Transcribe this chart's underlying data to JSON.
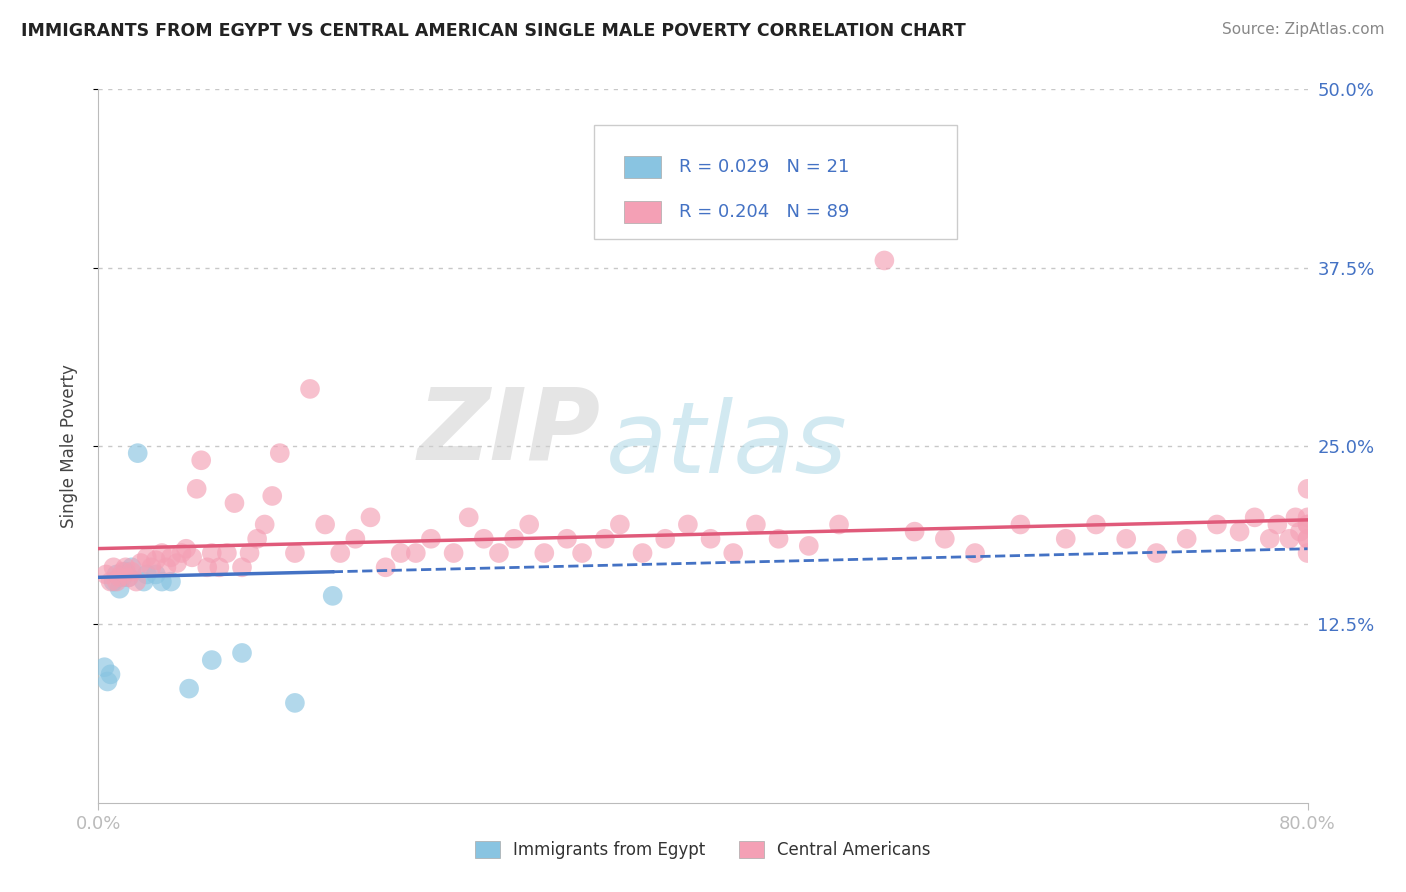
{
  "title": "IMMIGRANTS FROM EGYPT VS CENTRAL AMERICAN SINGLE MALE POVERTY CORRELATION CHART",
  "source": "Source: ZipAtlas.com",
  "ylabel_label": "Single Male Poverty",
  "legend_label1": "Immigrants from Egypt",
  "legend_label2": "Central Americans",
  "legend_R1": "R = 0.029",
  "legend_N1": "N = 21",
  "legend_R2": "R = 0.204",
  "legend_N2": "N = 89",
  "color_blue": "#89c4e1",
  "color_pink": "#f4a0b5",
  "color_blue_line": "#4472c4",
  "color_pink_line": "#e05a7a",
  "xlim": [
    0.0,
    0.8
  ],
  "ylim": [
    0.0,
    0.5
  ],
  "watermark_zip": "ZIP",
  "watermark_atlas": "atlas",
  "background_color": "#ffffff",
  "grid_color": "#c8c8c8",
  "blue_x": [
    0.004,
    0.006,
    0.008,
    0.01,
    0.012,
    0.014,
    0.016,
    0.018,
    0.02,
    0.022,
    0.026,
    0.03,
    0.032,
    0.038,
    0.042,
    0.048,
    0.06,
    0.075,
    0.095,
    0.13,
    0.155
  ],
  "blue_y": [
    0.095,
    0.085,
    0.09,
    0.155,
    0.16,
    0.15,
    0.158,
    0.162,
    0.158,
    0.165,
    0.245,
    0.155,
    0.16,
    0.16,
    0.155,
    0.155,
    0.08,
    0.1,
    0.105,
    0.07,
    0.145
  ],
  "pink_x": [
    0.005,
    0.008,
    0.01,
    0.012,
    0.014,
    0.016,
    0.018,
    0.02,
    0.022,
    0.025,
    0.028,
    0.032,
    0.035,
    0.038,
    0.042,
    0.045,
    0.048,
    0.052,
    0.055,
    0.058,
    0.062,
    0.065,
    0.068,
    0.072,
    0.075,
    0.08,
    0.085,
    0.09,
    0.095,
    0.1,
    0.105,
    0.11,
    0.115,
    0.12,
    0.13,
    0.14,
    0.15,
    0.16,
    0.17,
    0.18,
    0.19,
    0.2,
    0.21,
    0.22,
    0.235,
    0.245,
    0.255,
    0.265,
    0.275,
    0.285,
    0.295,
    0.31,
    0.32,
    0.335,
    0.345,
    0.36,
    0.375,
    0.39,
    0.405,
    0.42,
    0.435,
    0.45,
    0.47,
    0.49,
    0.52,
    0.54,
    0.56,
    0.58,
    0.61,
    0.64,
    0.66,
    0.68,
    0.7,
    0.72,
    0.74,
    0.755,
    0.765,
    0.775,
    0.78,
    0.788,
    0.792,
    0.795,
    0.8,
    0.8,
    0.8,
    0.8,
    0.8,
    0.8,
    0.8
  ],
  "pink_y": [
    0.16,
    0.155,
    0.165,
    0.155,
    0.158,
    0.162,
    0.165,
    0.158,
    0.162,
    0.155,
    0.168,
    0.172,
    0.165,
    0.17,
    0.175,
    0.165,
    0.172,
    0.168,
    0.175,
    0.178,
    0.172,
    0.22,
    0.24,
    0.165,
    0.175,
    0.165,
    0.175,
    0.21,
    0.165,
    0.175,
    0.185,
    0.195,
    0.215,
    0.245,
    0.175,
    0.29,
    0.195,
    0.175,
    0.185,
    0.2,
    0.165,
    0.175,
    0.175,
    0.185,
    0.175,
    0.2,
    0.185,
    0.175,
    0.185,
    0.195,
    0.175,
    0.185,
    0.175,
    0.185,
    0.195,
    0.175,
    0.185,
    0.195,
    0.185,
    0.175,
    0.195,
    0.185,
    0.18,
    0.195,
    0.38,
    0.19,
    0.185,
    0.175,
    0.195,
    0.185,
    0.195,
    0.185,
    0.175,
    0.185,
    0.195,
    0.19,
    0.2,
    0.185,
    0.195,
    0.185,
    0.2,
    0.19,
    0.175,
    0.185,
    0.195,
    0.185,
    0.195,
    0.2,
    0.22
  ],
  "yticks": [
    0.125,
    0.25,
    0.375,
    0.5
  ],
  "ytick_labels": [
    "12.5%",
    "25.0%",
    "37.5%",
    "50.0%"
  ],
  "xticks": [
    0.0,
    0.8
  ],
  "xtick_labels": [
    "0.0%",
    "80.0%"
  ]
}
